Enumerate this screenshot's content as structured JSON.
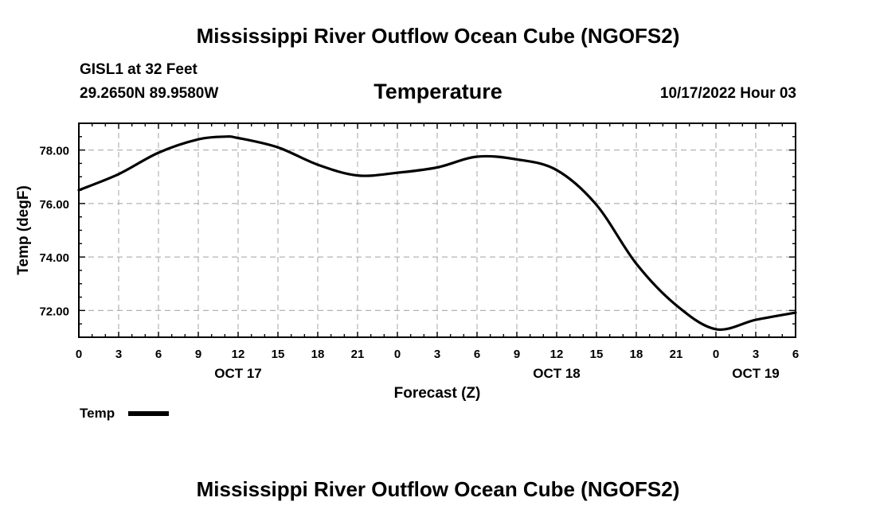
{
  "header": {
    "title": "Mississippi River Outflow Ocean Cube (NGOFS2)",
    "station_line": "GISL1 at 32 Feet",
    "coords": "29.2650N  89.9580W",
    "chart_title": "Temperature",
    "timestamp": "10/17/2022 Hour 03"
  },
  "footer": {
    "title": "Mississippi River Outflow Ocean Cube (NGOFS2)"
  },
  "legend": {
    "label": "Temp"
  },
  "chart_data": {
    "type": "line",
    "title": "Temperature",
    "xlabel": "Forecast (Z)",
    "ylabel": "Temp (degF)",
    "x_unit": "forecast hour",
    "xlim": [
      0,
      54
    ],
    "ylim": [
      71.0,
      79.0
    ],
    "grid": true,
    "legend_position": "bottom-left",
    "x_ticks": [
      {
        "x": 0,
        "label": "0"
      },
      {
        "x": 3,
        "label": "3"
      },
      {
        "x": 6,
        "label": "6"
      },
      {
        "x": 9,
        "label": "9"
      },
      {
        "x": 12,
        "label": "12"
      },
      {
        "x": 15,
        "label": "15"
      },
      {
        "x": 18,
        "label": "18"
      },
      {
        "x": 21,
        "label": "21"
      },
      {
        "x": 24,
        "label": "0"
      },
      {
        "x": 27,
        "label": "3"
      },
      {
        "x": 30,
        "label": "6"
      },
      {
        "x": 33,
        "label": "9"
      },
      {
        "x": 36,
        "label": "12"
      },
      {
        "x": 39,
        "label": "15"
      },
      {
        "x": 42,
        "label": "18"
      },
      {
        "x": 45,
        "label": "21"
      },
      {
        "x": 48,
        "label": "0"
      },
      {
        "x": 51,
        "label": "3"
      },
      {
        "x": 54,
        "label": "6"
      }
    ],
    "date_labels": [
      {
        "x": 12,
        "label": "OCT 17"
      },
      {
        "x": 36,
        "label": "OCT 18"
      },
      {
        "x": 51,
        "label": "OCT 19"
      }
    ],
    "y_ticks": [
      {
        "y": 72,
        "label": "72.00"
      },
      {
        "y": 74,
        "label": "74.00"
      },
      {
        "y": 76,
        "label": "76.00"
      },
      {
        "y": 78,
        "label": "78.00"
      }
    ],
    "series": [
      {
        "name": "Temp",
        "color": "#000000",
        "x": [
          0,
          3,
          6,
          9,
          11,
          12,
          15,
          18,
          21,
          24,
          27,
          30,
          33,
          36,
          39,
          42,
          45,
          48,
          51,
          54
        ],
        "y": [
          76.5,
          77.1,
          77.9,
          78.4,
          78.5,
          78.45,
          78.1,
          77.45,
          77.05,
          77.15,
          77.35,
          77.75,
          77.65,
          77.25,
          75.95,
          73.75,
          72.2,
          71.3,
          71.65,
          71.92
        ]
      }
    ]
  }
}
